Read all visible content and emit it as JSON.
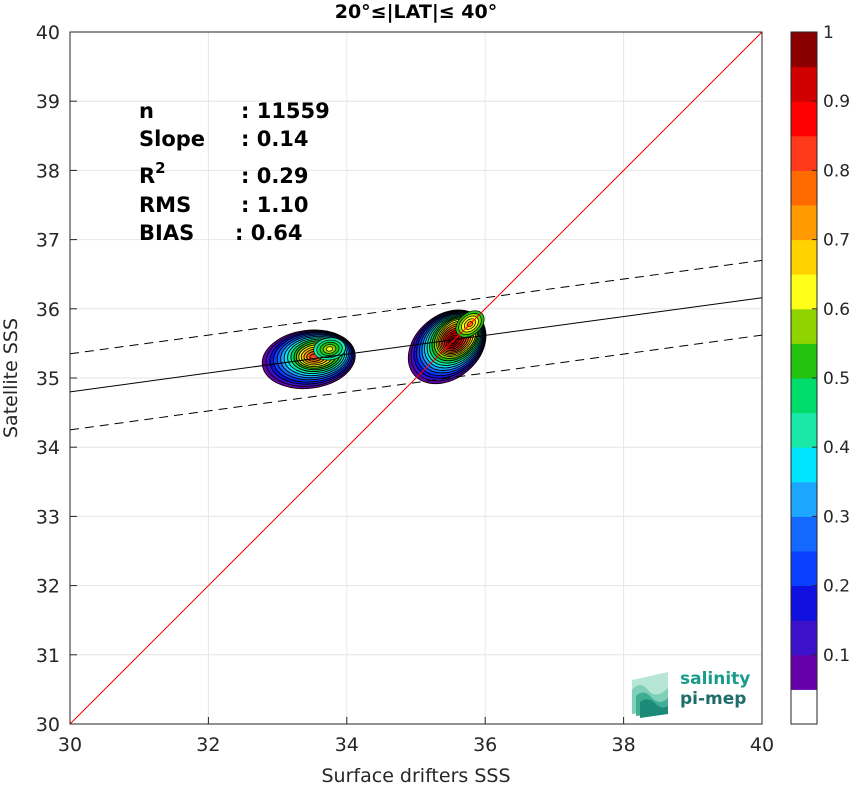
{
  "chart_data": {
    "type": "heatmap",
    "title": "20°≤|LAT|≤ 40°",
    "xlabel": "Surface drifters SSS",
    "ylabel": "Satellite SSS",
    "xlim": [
      30,
      40
    ],
    "ylim": [
      30,
      40
    ],
    "xticks": [
      "30",
      "32",
      "34",
      "36",
      "38",
      "40"
    ],
    "yticks": [
      "30",
      "31",
      "32",
      "33",
      "34",
      "35",
      "36",
      "37",
      "38",
      "39",
      "40"
    ],
    "grid": true,
    "stats": [
      {
        "label": "n",
        "value": ": 11559"
      },
      {
        "label": "Slope",
        "value": ": 0.14"
      },
      {
        "label": "R",
        "sup": "2",
        "value": ": 0.29"
      },
      {
        "label": "RMS",
        "value": ": 1.10"
      },
      {
        "label": "BIAS",
        "value": ": 0.64"
      }
    ],
    "lines": {
      "one_to_one": {
        "from": [
          30,
          30
        ],
        "to": [
          40,
          40
        ],
        "color": "#ff0000"
      },
      "regression": {
        "from": [
          30,
          34.8
        ],
        "to": [
          40,
          36.16
        ],
        "color": "#000000"
      },
      "upper_bound": {
        "from": [
          30,
          35.35
        ],
        "to": [
          40,
          36.7
        ],
        "style": "dashed"
      },
      "lower_bound": {
        "from": [
          30,
          34.25
        ],
        "to": [
          40,
          35.62
        ],
        "style": "dashed"
      }
    },
    "density_clusters": [
      {
        "center": [
          33.45,
          35.27
        ],
        "rx": 1.35,
        "ry": 0.44,
        "rotate": -7,
        "peak": 0.82,
        "sub_peak": [
          33.75,
          35.42
        ],
        "sub_value": 0.62
      },
      {
        "center": [
          35.45,
          35.45
        ],
        "rx": 1.25,
        "ry": 0.48,
        "rotate": -40,
        "peak": 1.0,
        "sub_peak": [
          35.78,
          35.78
        ],
        "sub_value": 0.68
      }
    ],
    "colorbar": {
      "ticks": [
        "0.1",
        "0.2",
        "0.3",
        "0.4",
        "0.5",
        "0.6",
        "0.7",
        "0.8",
        "0.9",
        "1"
      ],
      "colors": [
        "#ffffff",
        "#6600aa",
        "#3b12c9",
        "#1010e0",
        "#0b3fff",
        "#1368ff",
        "#1ca6ff",
        "#00e5ff",
        "#1ae8a6",
        "#00dd6b",
        "#22c20f",
        "#8fd400",
        "#ffff1a",
        "#ffd200",
        "#ff9a00",
        "#ff6a00",
        "#ff3a1a",
        "#ff0000",
        "#d10000",
        "#8a0000"
      ]
    }
  },
  "logo": {
    "line1": "salinity",
    "line2": "pi-mep"
  }
}
